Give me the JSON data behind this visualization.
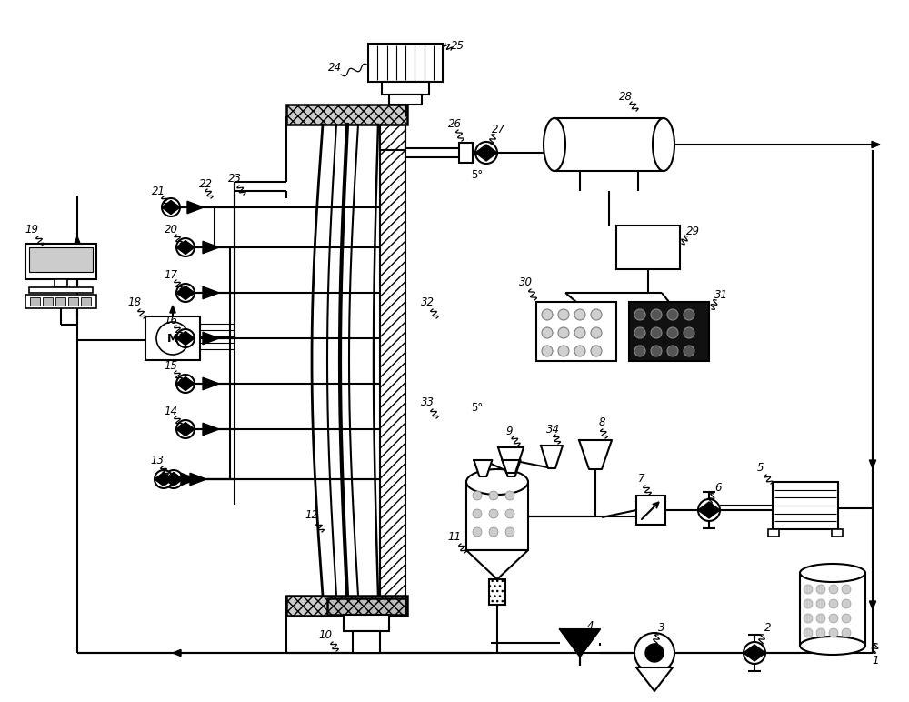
{
  "bg_color": "#ffffff",
  "line_color": "#000000",
  "lw": 1.5,
  "fig_w": 10.0,
  "fig_h": 7.72,
  "dpi": 100
}
